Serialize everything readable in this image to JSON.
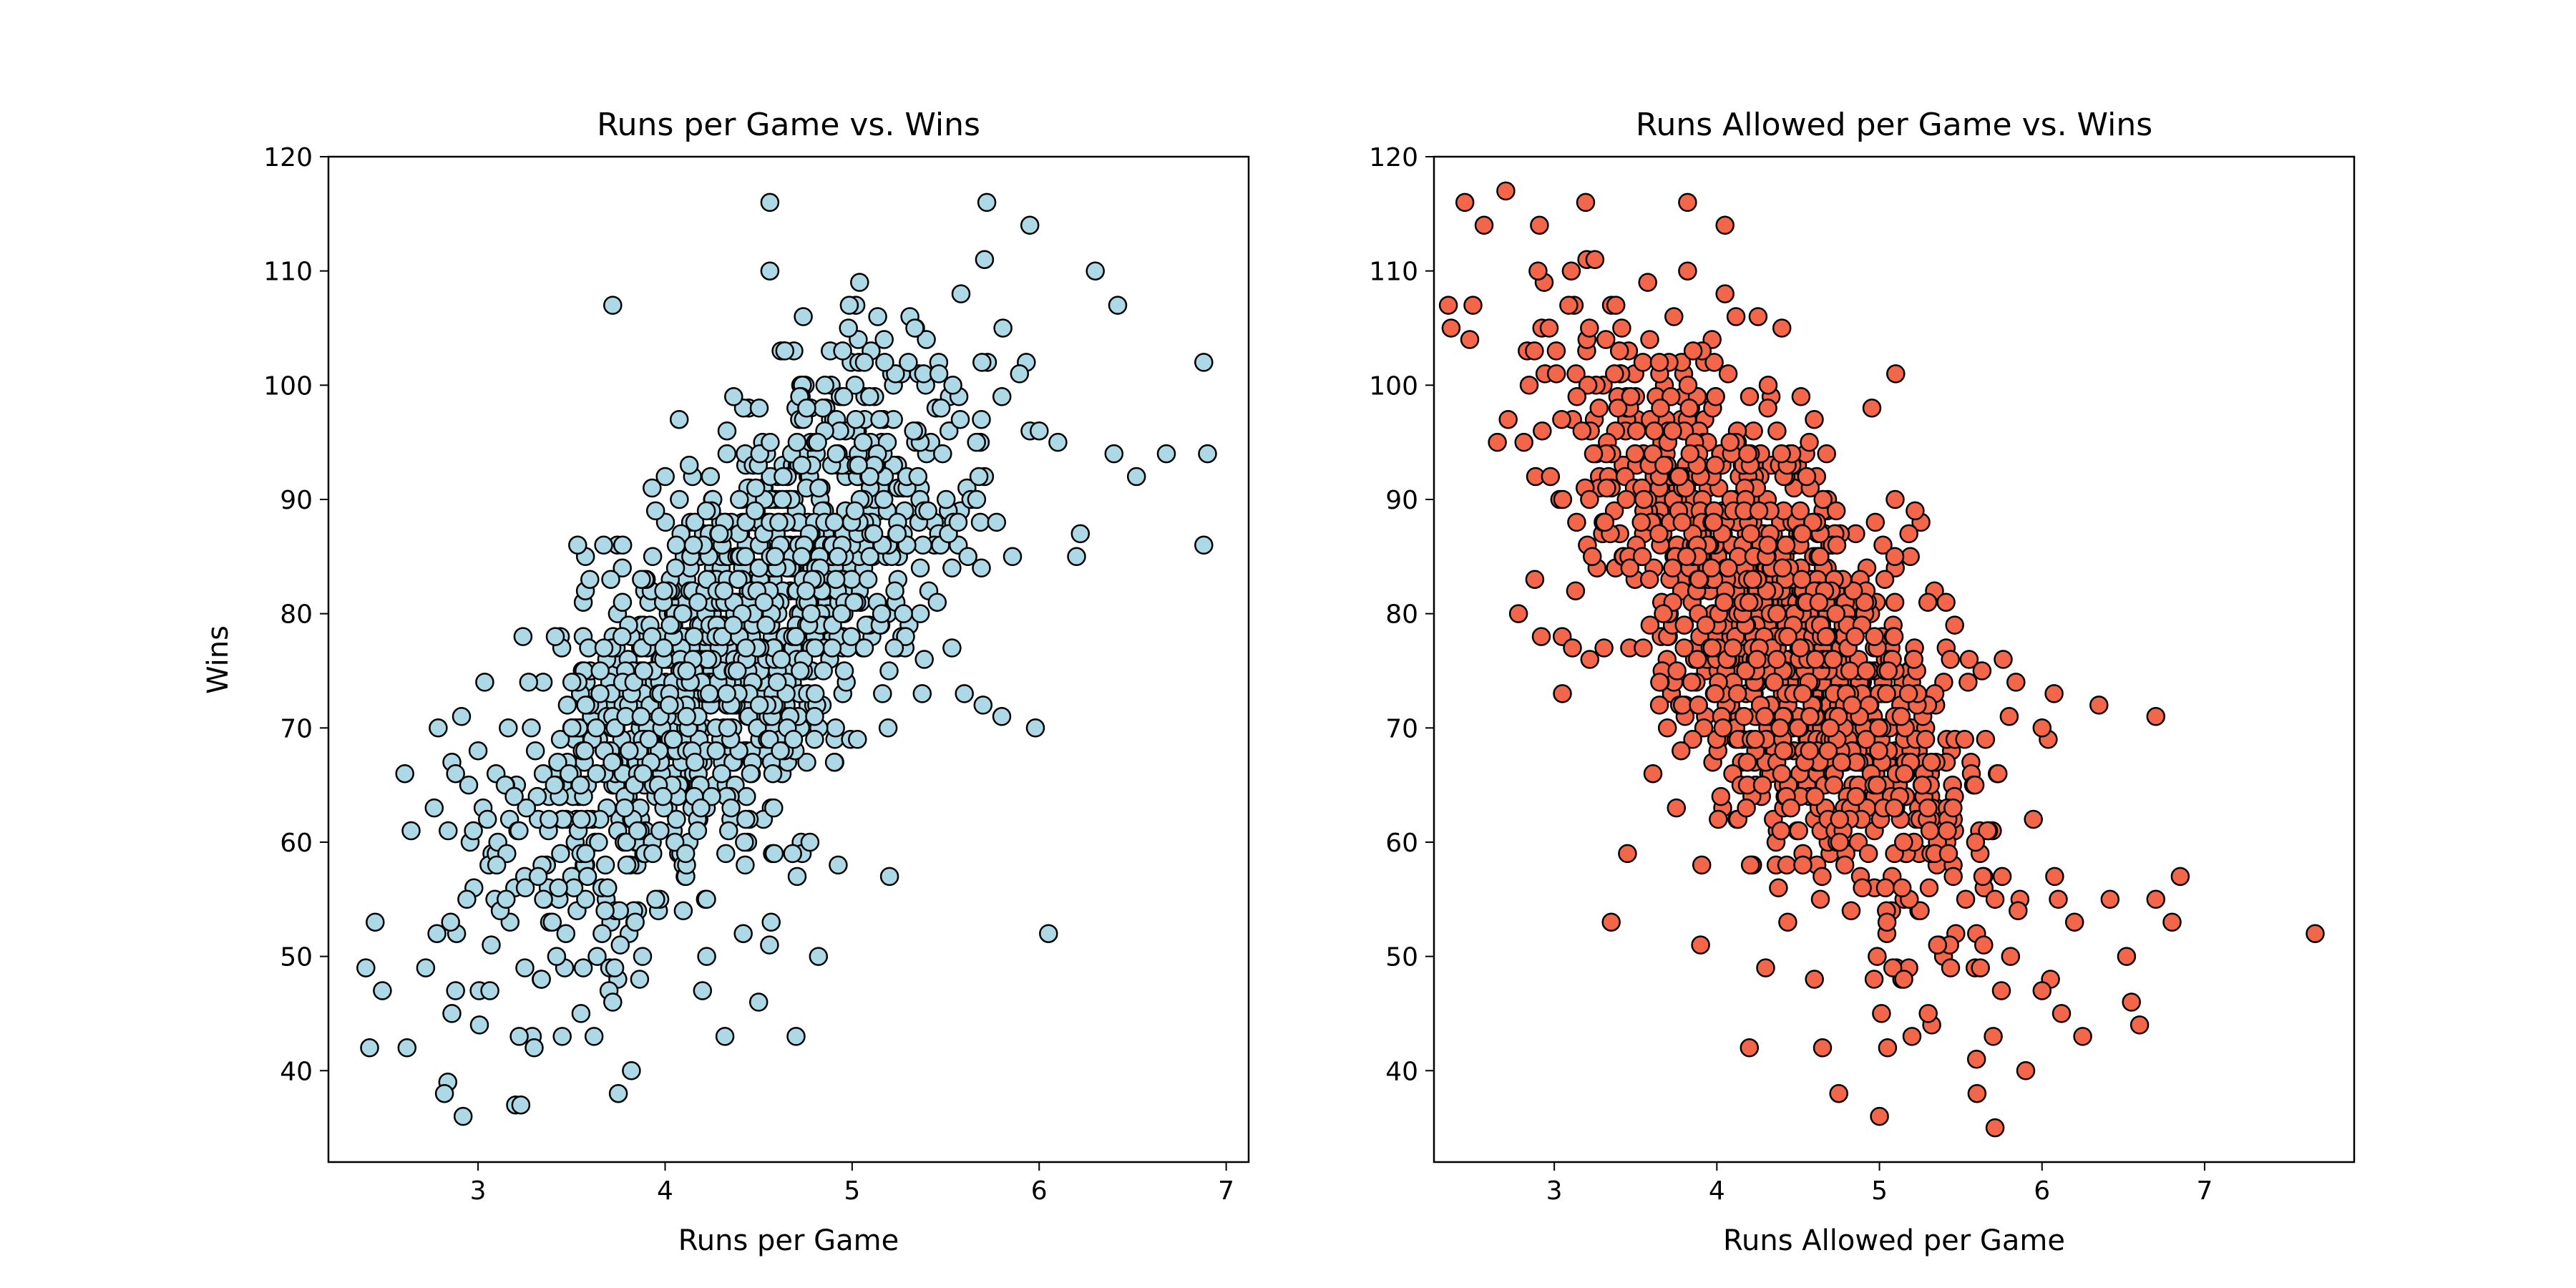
{
  "chart_data": [
    {
      "type": "scatter",
      "title": "Runs per Game vs. Wins",
      "xlabel": "Runs per Game",
      "ylabel": "Wins",
      "xlim": [
        2.2,
        7.12
      ],
      "ylim": [
        32,
        120
      ],
      "xticks": [
        3,
        4,
        5,
        6,
        7
      ],
      "yticks": [
        40,
        50,
        60,
        70,
        80,
        90,
        100,
        110,
        120
      ],
      "marker_fill": "#add8e6",
      "marker_edge": "#000000",
      "grid": false,
      "x": [
        2.4,
        2.45,
        2.42,
        2.62,
        2.72,
        2.78,
        2.82,
        2.86,
        2.88,
        2.94,
        2.84,
        2.86,
        2.92,
        2.88,
        2.95,
        3.0,
        3.05,
        3.1,
        3.15,
        3.22,
        3.25,
        3.3,
        3.35,
        3.45,
        3.55,
        3.62,
        3.7,
        3.75,
        3.82,
        3.72,
        3.76,
        3.84,
        4.2,
        4.32,
        4.5,
        4.56,
        4.7,
        4.82,
        5.2,
        5.6,
        5.7,
        5.8,
        5.98,
        6.05,
        5.72,
        5.95,
        6.3,
        6.42,
        6.88,
        6.9,
        6.88,
        6.68,
        6.52,
        6.4,
        6.22,
        6.2,
        6.1,
        6.0,
        4.56,
        3.72
      ],
      "y": [
        49,
        53,
        42,
        42,
        49,
        52,
        38,
        45,
        47,
        55,
        61,
        67,
        36,
        66,
        65,
        68,
        62,
        58,
        55,
        43,
        49,
        42,
        55,
        43,
        45,
        43,
        47,
        38,
        40,
        46,
        51,
        53,
        47,
        43,
        46,
        116,
        43,
        50,
        57,
        73,
        72,
        71,
        70,
        52,
        116,
        114,
        110,
        107,
        102,
        94,
        86,
        94,
        92,
        94,
        87,
        85,
        95,
        96,
        110,
        107
      ],
      "bulk": {
        "n": 1350,
        "x_center": 4.4,
        "x_sd": 0.6,
        "y_center": 78,
        "y_sd": 12,
        "slope": 14
      }
    },
    {
      "type": "scatter",
      "title": "Runs Allowed per Game vs. Wins",
      "xlabel": "Runs Allowed per Game",
      "ylabel": "",
      "xlim": [
        2.26,
        7.92
      ],
      "ylim": [
        32,
        120
      ],
      "xticks": [
        3,
        4,
        5,
        6,
        7
      ],
      "yticks": [
        40,
        50,
        60,
        70,
        80,
        90,
        100,
        110,
        120
      ],
      "marker_fill": "#f4664a",
      "marker_edge": "#000000",
      "grid": false,
      "x": [
        2.45,
        2.5,
        2.48,
        2.65,
        2.9,
        3.2,
        3.25,
        2.78,
        2.88,
        2.92,
        3.05,
        3.35,
        3.82,
        4.05,
        4.2,
        4.65,
        4.75,
        5.0,
        5.05,
        5.6,
        5.7,
        5.9,
        6.0,
        6.25,
        6.55,
        6.6,
        6.7,
        6.8,
        6.85,
        6.52,
        6.35,
        6.7,
        7.68,
        6.0,
        5.2,
        3.82,
        4.05,
        3.45,
        3.9,
        4.6,
        5.15,
        5.3,
        5.75,
        6.1,
        6.2,
        4.4,
        4.3,
        5.1
      ],
      "y": [
        116,
        107,
        104,
        95,
        110,
        111,
        111,
        80,
        83,
        78,
        73,
        53,
        116,
        114,
        42,
        42,
        38,
        36,
        42,
        38,
        43,
        40,
        47,
        43,
        46,
        44,
        55,
        53,
        57,
        50,
        72,
        71,
        52,
        70,
        43,
        110,
        108,
        59,
        51,
        48,
        48,
        45,
        47,
        55,
        53,
        105,
        49,
        101
      ],
      "bulk": {
        "n": 1350,
        "x_center": 4.4,
        "x_sd": 0.6,
        "y_center": 78,
        "y_sd": 12,
        "slope": -14
      }
    }
  ]
}
